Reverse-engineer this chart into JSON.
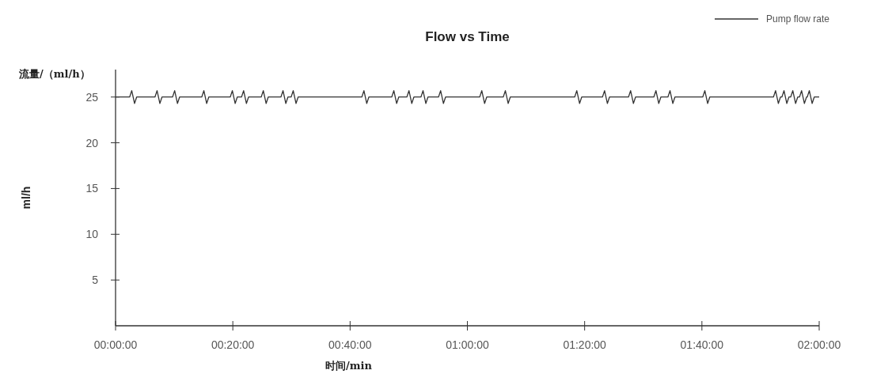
{
  "chart_data": {
    "type": "line",
    "title": "Flow vs Time",
    "xlabel": "时间/min",
    "ylabel": "ml/h",
    "annotations": [
      "流量/（ml/h）"
    ],
    "xlim": [
      0,
      2
    ],
    "ylim": [
      0,
      28
    ],
    "xticks": [
      {
        "value": 0,
        "label": "00:00:00"
      },
      {
        "value": 0.3333333,
        "label": "00:20:00"
      },
      {
        "value": 0.6666667,
        "label": "00:40:00"
      },
      {
        "value": 1,
        "label": "01:00:00"
      },
      {
        "value": 1.3333333,
        "label": "01:20:00"
      },
      {
        "value": 1.6666667,
        "label": "01:40:00"
      },
      {
        "value": 2,
        "label": "02:00:00"
      }
    ],
    "yticks": [
      5,
      10,
      15,
      20,
      25
    ],
    "legend": "top right",
    "series": [
      {
        "name": "Pump flow rate",
        "color": "#333333",
        "x": [
          0,
          0.04,
          0.046,
          0.054,
          0.06,
          0.112,
          0.118,
          0.126,
          0.132,
          0.162,
          0.168,
          0.176,
          0.182,
          0.245,
          0.251,
          0.259,
          0.265,
          0.326,
          0.332,
          0.34,
          0.346,
          0.358,
          0.364,
          0.372,
          0.378,
          0.414,
          0.42,
          0.428,
          0.434,
          0.47,
          0.476,
          0.484,
          0.49,
          0.499,
          0.505,
          0.513,
          0.519,
          0.7,
          0.706,
          0.714,
          0.72,
          0.785,
          0.791,
          0.799,
          0.805,
          0.828,
          0.834,
          0.842,
          0.848,
          0.868,
          0.874,
          0.882,
          0.888,
          0.918,
          0.924,
          0.932,
          0.938,
          1.035,
          1.041,
          1.049,
          1.055,
          1.102,
          1.108,
          1.116,
          1.122,
          1.305,
          1.311,
          1.319,
          1.325,
          1.384,
          1.39,
          1.398,
          1.404,
          1.458,
          1.464,
          1.472,
          1.478,
          1.53,
          1.536,
          1.544,
          1.55,
          1.57,
          1.576,
          1.584,
          1.59,
          1.669,
          1.675,
          1.683,
          1.689,
          1.87,
          1.876,
          1.884,
          1.89,
          1.894,
          1.9,
          1.908,
          1.914,
          1.919,
          1.925,
          1.933,
          1.939,
          1.944,
          1.95,
          1.958,
          1.964,
          1.966,
          1.972,
          1.98,
          1.986,
          2.0
        ],
        "values": [
          25,
          25,
          25.7,
          24.3,
          25,
          25,
          25.7,
          24.3,
          25,
          25,
          25.7,
          24.3,
          25,
          25,
          25.7,
          24.3,
          25,
          25,
          25.7,
          24.3,
          25,
          25,
          25.7,
          24.3,
          25,
          25,
          25.7,
          24.3,
          25,
          25,
          25.7,
          24.3,
          25,
          25,
          25.7,
          24.3,
          25,
          25,
          25.7,
          24.3,
          25,
          25,
          25.7,
          24.3,
          25,
          25,
          25.7,
          24.3,
          25,
          25,
          25.7,
          24.3,
          25,
          25,
          25.7,
          24.3,
          25,
          25,
          25.7,
          24.3,
          25,
          25,
          25.7,
          24.3,
          25,
          25,
          25.7,
          24.3,
          25,
          25,
          25.7,
          24.3,
          25,
          25,
          25.7,
          24.3,
          25,
          25,
          25.7,
          24.3,
          25,
          25,
          25.7,
          24.3,
          25,
          25,
          25.7,
          24.3,
          25,
          25,
          25.7,
          24.3,
          25,
          25,
          25.7,
          24.3,
          25,
          25,
          25.7,
          24.3,
          25,
          25,
          25.7,
          24.3,
          25,
          25,
          25.7,
          24.3,
          25,
          25
        ]
      }
    ]
  }
}
